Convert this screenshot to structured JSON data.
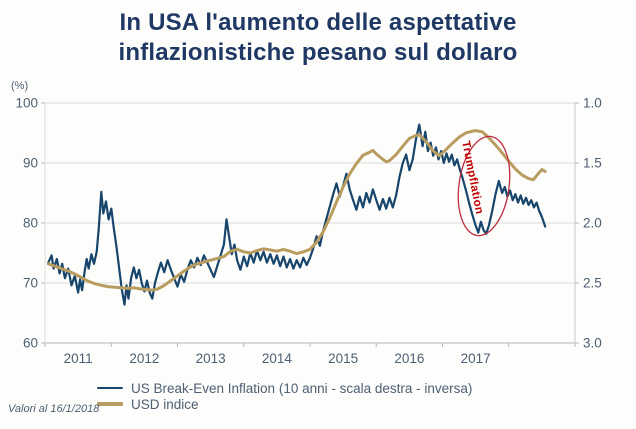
{
  "title": {
    "line1": "In USA l'aumento delle aspettative",
    "line2": "inflazionistiche pesano sul dollaro"
  },
  "footer_note": "Valori al 16/1/2018",
  "annotation": {
    "label": "Trumpflation"
  },
  "colors": {
    "title": "#1f3864",
    "axis": "#4d5f73",
    "navy": "#17456b",
    "gold": "#b99c5f",
    "red": "#c00000",
    "grid": "#dcdcdc"
  },
  "chart_data": {
    "type": "line",
    "title": "In USA l'aumento delle aspettative inflazionistiche pesano sul dollaro",
    "legend_position": "bottom",
    "grid": "horizontal",
    "left_axis": {
      "label": "(%)",
      "ticks": [
        "100",
        "90",
        "80",
        "70",
        "60"
      ],
      "range": [
        60,
        100
      ]
    },
    "right_axis": {
      "ticks": [
        "1.0",
        "1.5",
        "2.0",
        "2.5",
        "3.0"
      ],
      "range": [
        1.0,
        3.0
      ],
      "inverted": true
    },
    "x_axis": {
      "tick_labels": [
        "2011",
        "2012",
        "2013",
        "2014",
        "2015",
        "2016",
        "2017"
      ],
      "range": [
        2010.5,
        2018.5
      ]
    },
    "series": [
      {
        "name": "US Break-Even Inflation (10 anni - scala destra - inversa)",
        "axis": "right",
        "color": "#17456b",
        "points": [
          [
            2010.55,
            2.33
          ],
          [
            2010.6,
            2.27
          ],
          [
            2010.63,
            2.38
          ],
          [
            2010.68,
            2.3
          ],
          [
            2010.72,
            2.42
          ],
          [
            2010.76,
            2.34
          ],
          [
            2010.8,
            2.46
          ],
          [
            2010.85,
            2.38
          ],
          [
            2010.9,
            2.52
          ],
          [
            2010.95,
            2.44
          ],
          [
            2011.0,
            2.58
          ],
          [
            2011.03,
            2.47
          ],
          [
            2011.06,
            2.56
          ],
          [
            2011.1,
            2.4
          ],
          [
            2011.13,
            2.3
          ],
          [
            2011.16,
            2.38
          ],
          [
            2011.2,
            2.26
          ],
          [
            2011.24,
            2.34
          ],
          [
            2011.28,
            2.24
          ],
          [
            2011.31,
            2.05
          ],
          [
            2011.35,
            1.74
          ],
          [
            2011.38,
            1.92
          ],
          [
            2011.42,
            1.82
          ],
          [
            2011.46,
            1.97
          ],
          [
            2011.5,
            1.88
          ],
          [
            2011.54,
            2.05
          ],
          [
            2011.58,
            2.2
          ],
          [
            2011.62,
            2.38
          ],
          [
            2011.66,
            2.56
          ],
          [
            2011.7,
            2.68
          ],
          [
            2011.73,
            2.52
          ],
          [
            2011.76,
            2.63
          ],
          [
            2011.8,
            2.46
          ],
          [
            2011.84,
            2.37
          ],
          [
            2011.88,
            2.46
          ],
          [
            2011.92,
            2.39
          ],
          [
            2011.96,
            2.5
          ],
          [
            2012.0,
            2.57
          ],
          [
            2012.04,
            2.48
          ],
          [
            2012.08,
            2.58
          ],
          [
            2012.12,
            2.63
          ],
          [
            2012.16,
            2.5
          ],
          [
            2012.2,
            2.42
          ],
          [
            2012.25,
            2.33
          ],
          [
            2012.3,
            2.41
          ],
          [
            2012.35,
            2.31
          ],
          [
            2012.4,
            2.39
          ],
          [
            2012.45,
            2.46
          ],
          [
            2012.5,
            2.53
          ],
          [
            2012.55,
            2.43
          ],
          [
            2012.6,
            2.49
          ],
          [
            2012.65,
            2.39
          ],
          [
            2012.7,
            2.31
          ],
          [
            2012.75,
            2.37
          ],
          [
            2012.8,
            2.29
          ],
          [
            2012.85,
            2.35
          ],
          [
            2012.9,
            2.27
          ],
          [
            2012.95,
            2.33
          ],
          [
            2013.0,
            2.39
          ],
          [
            2013.05,
            2.45
          ],
          [
            2013.1,
            2.36
          ],
          [
            2013.15,
            2.27
          ],
          [
            2013.2,
            2.18
          ],
          [
            2013.24,
            1.97
          ],
          [
            2013.28,
            2.12
          ],
          [
            2013.32,
            2.26
          ],
          [
            2013.36,
            2.18
          ],
          [
            2013.4,
            2.31
          ],
          [
            2013.45,
            2.39
          ],
          [
            2013.5,
            2.28
          ],
          [
            2013.55,
            2.36
          ],
          [
            2013.6,
            2.25
          ],
          [
            2013.65,
            2.33
          ],
          [
            2013.7,
            2.23
          ],
          [
            2013.75,
            2.31
          ],
          [
            2013.8,
            2.24
          ],
          [
            2013.85,
            2.33
          ],
          [
            2013.9,
            2.26
          ],
          [
            2013.95,
            2.34
          ],
          [
            2014.0,
            2.27
          ],
          [
            2014.05,
            2.36
          ],
          [
            2014.1,
            2.28
          ],
          [
            2014.15,
            2.37
          ],
          [
            2014.2,
            2.3
          ],
          [
            2014.25,
            2.38
          ],
          [
            2014.3,
            2.31
          ],
          [
            2014.35,
            2.37
          ],
          [
            2014.4,
            2.29
          ],
          [
            2014.45,
            2.35
          ],
          [
            2014.5,
            2.29
          ],
          [
            2014.55,
            2.21
          ],
          [
            2014.6,
            2.11
          ],
          [
            2014.65,
            2.19
          ],
          [
            2014.7,
            2.06
          ],
          [
            2014.75,
            1.96
          ],
          [
            2014.8,
            1.86
          ],
          [
            2014.85,
            1.76
          ],
          [
            2014.9,
            1.67
          ],
          [
            2014.95,
            1.78
          ],
          [
            2015.0,
            1.69
          ],
          [
            2015.05,
            1.59
          ],
          [
            2015.1,
            1.72
          ],
          [
            2015.15,
            1.81
          ],
          [
            2015.2,
            1.89
          ],
          [
            2015.25,
            1.78
          ],
          [
            2015.3,
            1.87
          ],
          [
            2015.35,
            1.75
          ],
          [
            2015.4,
            1.83
          ],
          [
            2015.45,
            1.72
          ],
          [
            2015.5,
            1.81
          ],
          [
            2015.55,
            1.89
          ],
          [
            2015.6,
            1.8
          ],
          [
            2015.65,
            1.88
          ],
          [
            2015.7,
            1.79
          ],
          [
            2015.75,
            1.87
          ],
          [
            2015.8,
            1.77
          ],
          [
            2015.85,
            1.62
          ],
          [
            2015.9,
            1.5
          ],
          [
            2015.95,
            1.43
          ],
          [
            2016.0,
            1.56
          ],
          [
            2016.05,
            1.47
          ],
          [
            2016.1,
            1.3
          ],
          [
            2016.15,
            1.18
          ],
          [
            2016.2,
            1.36
          ],
          [
            2016.24,
            1.24
          ],
          [
            2016.28,
            1.4
          ],
          [
            2016.32,
            1.33
          ],
          [
            2016.36,
            1.44
          ],
          [
            2016.4,
            1.37
          ],
          [
            2016.44,
            1.47
          ],
          [
            2016.48,
            1.4
          ],
          [
            2016.52,
            1.5
          ],
          [
            2016.56,
            1.42
          ],
          [
            2016.6,
            1.49
          ],
          [
            2016.64,
            1.43
          ],
          [
            2016.68,
            1.52
          ],
          [
            2016.72,
            1.47
          ],
          [
            2016.76,
            1.55
          ],
          [
            2016.8,
            1.62
          ],
          [
            2016.85,
            1.72
          ],
          [
            2016.9,
            1.83
          ],
          [
            2016.95,
            1.93
          ],
          [
            2017.0,
            2.02
          ],
          [
            2017.04,
            2.08
          ],
          [
            2017.08,
            1.99
          ],
          [
            2017.12,
            2.06
          ],
          [
            2017.16,
            2.09
          ],
          [
            2017.2,
            2.02
          ],
          [
            2017.25,
            1.9
          ],
          [
            2017.3,
            1.76
          ],
          [
            2017.35,
            1.65
          ],
          [
            2017.4,
            1.75
          ],
          [
            2017.44,
            1.7
          ],
          [
            2017.48,
            1.78
          ],
          [
            2017.52,
            1.73
          ],
          [
            2017.56,
            1.81
          ],
          [
            2017.6,
            1.76
          ],
          [
            2017.64,
            1.83
          ],
          [
            2017.68,
            1.77
          ],
          [
            2017.72,
            1.84
          ],
          [
            2017.76,
            1.79
          ],
          [
            2017.8,
            1.85
          ],
          [
            2017.84,
            1.81
          ],
          [
            2017.88,
            1.87
          ],
          [
            2017.92,
            1.83
          ],
          [
            2017.96,
            1.9
          ],
          [
            2018.0,
            1.95
          ],
          [
            2018.05,
            2.03
          ]
        ]
      },
      {
        "name": "USD indice",
        "axis": "left",
        "color": "#b99c5f",
        "points": [
          [
            2010.55,
            73.2
          ],
          [
            2010.65,
            72.8
          ],
          [
            2010.75,
            72.4
          ],
          [
            2010.85,
            72.0
          ],
          [
            2010.95,
            71.5
          ],
          [
            2011.05,
            70.9
          ],
          [
            2011.15,
            70.3
          ],
          [
            2011.25,
            69.9
          ],
          [
            2011.35,
            69.6
          ],
          [
            2011.45,
            69.4
          ],
          [
            2011.55,
            69.3
          ],
          [
            2011.65,
            69.2
          ],
          [
            2011.75,
            69.1
          ],
          [
            2011.85,
            69.2
          ],
          [
            2011.95,
            69.0
          ],
          [
            2012.05,
            68.9
          ],
          [
            2012.12,
            68.8
          ],
          [
            2012.2,
            69.0
          ],
          [
            2012.3,
            69.6
          ],
          [
            2012.4,
            70.4
          ],
          [
            2012.5,
            71.2
          ],
          [
            2012.6,
            72.0
          ],
          [
            2012.7,
            72.7
          ],
          [
            2012.8,
            73.2
          ],
          [
            2012.9,
            73.5
          ],
          [
            2013.0,
            73.8
          ],
          [
            2013.1,
            74.1
          ],
          [
            2013.2,
            74.4
          ],
          [
            2013.3,
            75.3
          ],
          [
            2013.4,
            75.6
          ],
          [
            2013.5,
            75.2
          ],
          [
            2013.6,
            75.0
          ],
          [
            2013.7,
            75.4
          ],
          [
            2013.8,
            75.7
          ],
          [
            2013.9,
            75.5
          ],
          [
            2014.0,
            75.3
          ],
          [
            2014.1,
            75.6
          ],
          [
            2014.2,
            75.3
          ],
          [
            2014.3,
            74.9
          ],
          [
            2014.4,
            75.2
          ],
          [
            2014.5,
            75.6
          ],
          [
            2014.6,
            76.8
          ],
          [
            2014.7,
            78.6
          ],
          [
            2014.8,
            80.9
          ],
          [
            2014.9,
            83.5
          ],
          [
            2015.0,
            86.0
          ],
          [
            2015.1,
            88.2
          ],
          [
            2015.2,
            89.9
          ],
          [
            2015.3,
            91.3
          ],
          [
            2015.4,
            91.8
          ],
          [
            2015.45,
            92.1
          ],
          [
            2015.5,
            91.5
          ],
          [
            2015.6,
            90.6
          ],
          [
            2015.65,
            90.2
          ],
          [
            2015.7,
            90.4
          ],
          [
            2015.8,
            91.4
          ],
          [
            2015.9,
            92.8
          ],
          [
            2016.0,
            94.1
          ],
          [
            2016.1,
            94.6
          ],
          [
            2016.15,
            94.7
          ],
          [
            2016.25,
            93.6
          ],
          [
            2016.35,
            92.1
          ],
          [
            2016.45,
            91.2
          ],
          [
            2016.55,
            92.2
          ],
          [
            2016.65,
            93.3
          ],
          [
            2016.75,
            94.3
          ],
          [
            2016.85,
            95.0
          ],
          [
            2016.95,
            95.3
          ],
          [
            2017.0,
            95.4
          ],
          [
            2017.1,
            95.2
          ],
          [
            2017.2,
            94.2
          ],
          [
            2017.3,
            93.0
          ],
          [
            2017.4,
            91.7
          ],
          [
            2017.5,
            90.3
          ],
          [
            2017.6,
            89.0
          ],
          [
            2017.7,
            88.0
          ],
          [
            2017.8,
            87.4
          ],
          [
            2017.87,
            87.2
          ],
          [
            2017.95,
            88.3
          ],
          [
            2018.0,
            88.9
          ],
          [
            2018.05,
            88.6
          ]
        ]
      }
    ]
  }
}
